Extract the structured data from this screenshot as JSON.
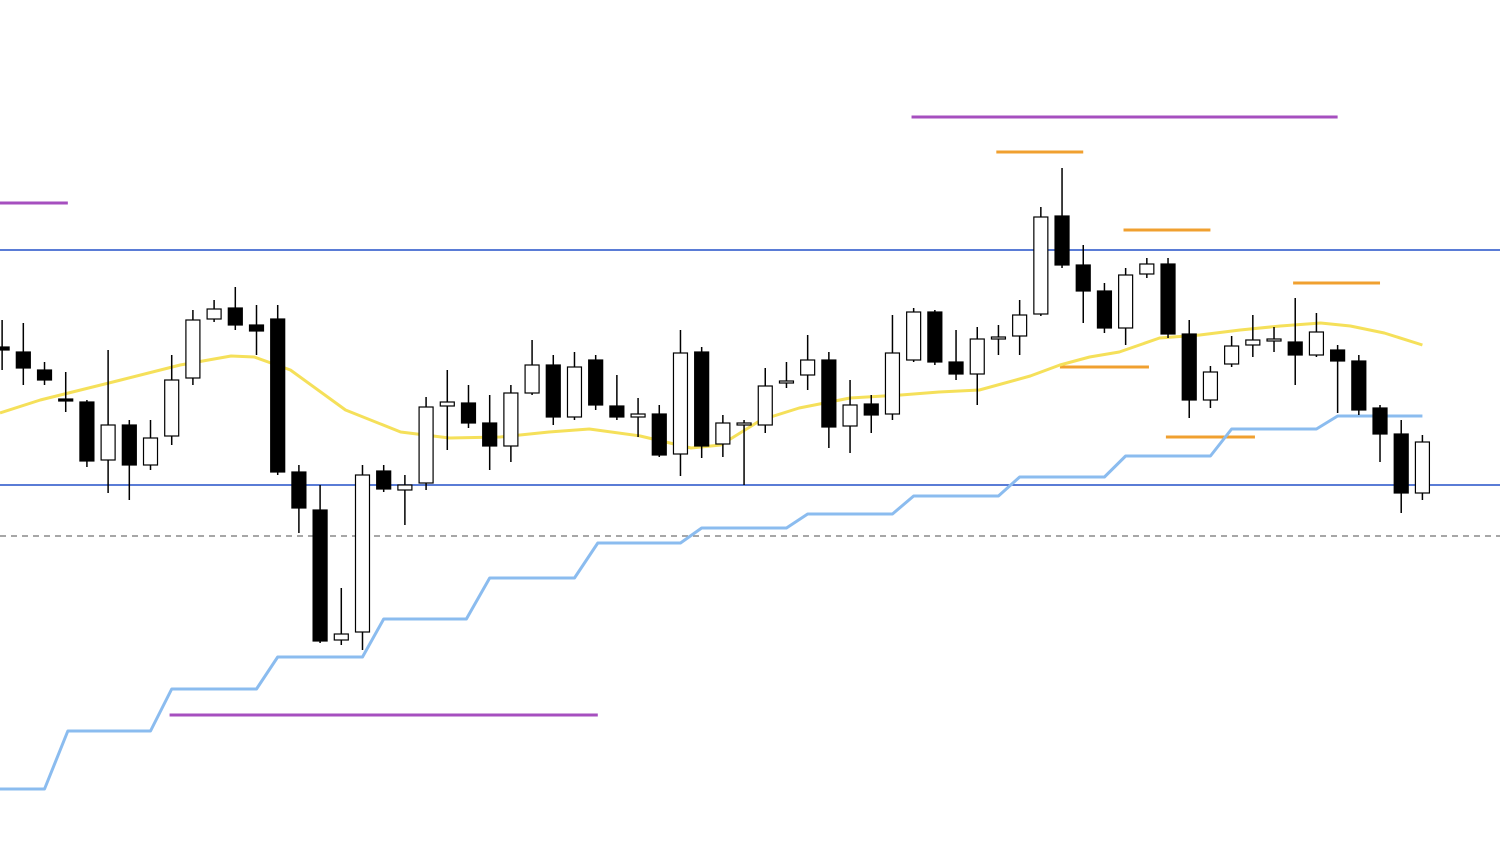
{
  "chart_data": {
    "type": "candlestick",
    "xlim": [
      -0.1,
      70.66
    ],
    "ylim": [
      0,
      844
    ],
    "up_color": "#ffffff",
    "down_color": "#000000",
    "open": [
      497,
      492,
      474,
      445,
      442,
      384,
      419,
      379,
      408,
      466,
      525,
      536,
      519,
      525,
      372,
      334,
      204,
      212,
      373,
      354,
      361,
      438,
      441,
      421,
      398,
      451,
      479,
      427,
      484,
      438,
      427,
      430,
      390,
      492,
      400,
      419,
      419,
      461,
      469,
      484,
      418,
      440,
      430,
      484,
      532,
      482,
      470,
      505,
      508,
      530,
      628,
      579,
      553,
      516,
      570,
      580,
      510,
      444,
      480,
      499,
      503,
      502,
      489,
      494,
      483,
      436,
      410,
      351
    ],
    "high": [
      524,
      521,
      482,
      472,
      444,
      494,
      424,
      424,
      489,
      534,
      544,
      557,
      539,
      539,
      379,
      359,
      256,
      379,
      379,
      369,
      447,
      474,
      459,
      449,
      459,
      504,
      489,
      492,
      489,
      469,
      446,
      439,
      514,
      497,
      429,
      424,
      476,
      482,
      509,
      492,
      464,
      449,
      529,
      536,
      534,
      514,
      517,
      519,
      544,
      637,
      676,
      599,
      561,
      576,
      586,
      586,
      524,
      478,
      508,
      529,
      517,
      546,
      531,
      499,
      489,
      439,
      424,
      409
    ],
    "low": [
      474,
      459,
      459,
      432,
      377,
      351,
      344,
      374,
      399,
      459,
      522,
      514,
      489,
      369,
      311,
      201,
      199,
      194,
      352,
      319,
      354,
      394,
      416,
      374,
      382,
      449,
      419,
      424,
      434,
      424,
      407,
      387,
      368,
      386,
      387,
      359,
      411,
      456,
      454,
      396,
      391,
      411,
      424,
      482,
      479,
      464,
      439,
      489,
      489,
      528,
      576,
      521,
      511,
      499,
      566,
      506,
      426,
      436,
      477,
      487,
      492,
      459,
      487,
      431,
      429,
      382,
      331,
      344
    ],
    "close": [
      494,
      476,
      464,
      443,
      383,
      419,
      379,
      406,
      464,
      524,
      535,
      519,
      513,
      372,
      336,
      203,
      210,
      369,
      355,
      359,
      437,
      442,
      421,
      398,
      451,
      479,
      427,
      477,
      439,
      427,
      430,
      389,
      491,
      398,
      421,
      421,
      458,
      463,
      484,
      417,
      439,
      429,
      491,
      532,
      482,
      470,
      505,
      507,
      529,
      627,
      579,
      553,
      516,
      569,
      580,
      510,
      444,
      472,
      498,
      504,
      505,
      489,
      512,
      483,
      434,
      410,
      351,
      402
    ],
    "lines": [
      {
        "color": "#f5e05a",
        "x": [
          -0.1,
          1.8,
          3.7,
          5.6,
          8.4,
          10.8,
          11.9,
          13.6,
          16.2,
          18.8,
          21.1,
          23.5,
          25.8,
          27.7,
          30.1,
          32.5,
          33.9,
          35.8,
          37.6,
          40.0,
          42.4,
          44.2,
          46.1,
          48.5,
          49.9,
          51.3,
          52.7,
          54.6,
          56.5,
          58.4,
          60.3,
          62.2,
          63.6,
          65.2,
          67.0
        ],
        "values": [
          431,
          444,
          454,
          464,
          479,
          488,
          487,
          474,
          434,
          412,
          406,
          407,
          412,
          415,
          408,
          396,
          399,
          424,
          436,
          446,
          449,
          452,
          454,
          468,
          479,
          487,
          492,
          506,
          509,
          514,
          518,
          521,
          518,
          511,
          499
        ]
      },
      {
        "color": "#8bbcef",
        "x": [
          -0.1,
          2.0,
          3.1,
          7.0,
          8.0,
          12.0,
          13.0,
          17.0,
          18.0,
          21.9,
          23.0,
          27.0,
          28.1,
          32.0,
          33.0,
          37.0,
          38.0,
          42.0,
          43.0,
          47.0,
          48.0,
          52.0,
          53.0,
          57.0,
          58.0,
          62.0,
          63.0,
          67.0
        ],
        "values": [
          55,
          55,
          113,
          113,
          155,
          155,
          187,
          187,
          225,
          225,
          266,
          266,
          301,
          301,
          316,
          316,
          330,
          330,
          348,
          348,
          367,
          367,
          388,
          388,
          415,
          415,
          428,
          428
        ]
      }
    ],
    "levels": [
      {
        "color": "#2450c8",
        "value": 594
      },
      {
        "color": "#2450c8",
        "value": 359
      },
      {
        "color": "#8a8a8a",
        "value": 308,
        "dashed": true
      },
      {
        "color": "#a64fbf",
        "value": 641,
        "x": [
          -0.1,
          3.1
        ]
      },
      {
        "color": "#a64fbf",
        "value": 727,
        "x": [
          42.9,
          63.0
        ]
      },
      {
        "color": "#a64fbf",
        "value": 129,
        "x": [
          7.9,
          28.1
        ]
      },
      {
        "color": "#f0a030",
        "value": 692,
        "x": [
          46.9,
          51.0
        ]
      },
      {
        "color": "#f0a030",
        "value": 614,
        "x": [
          52.9,
          57.0
        ]
      },
      {
        "color": "#f0a030",
        "value": 561,
        "x": [
          60.9,
          65.0
        ]
      },
      {
        "color": "#f0a030",
        "value": 477,
        "x": [
          49.9,
          54.1
        ]
      },
      {
        "color": "#f0a030",
        "value": 407,
        "x": [
          54.9,
          59.1
        ]
      }
    ]
  }
}
